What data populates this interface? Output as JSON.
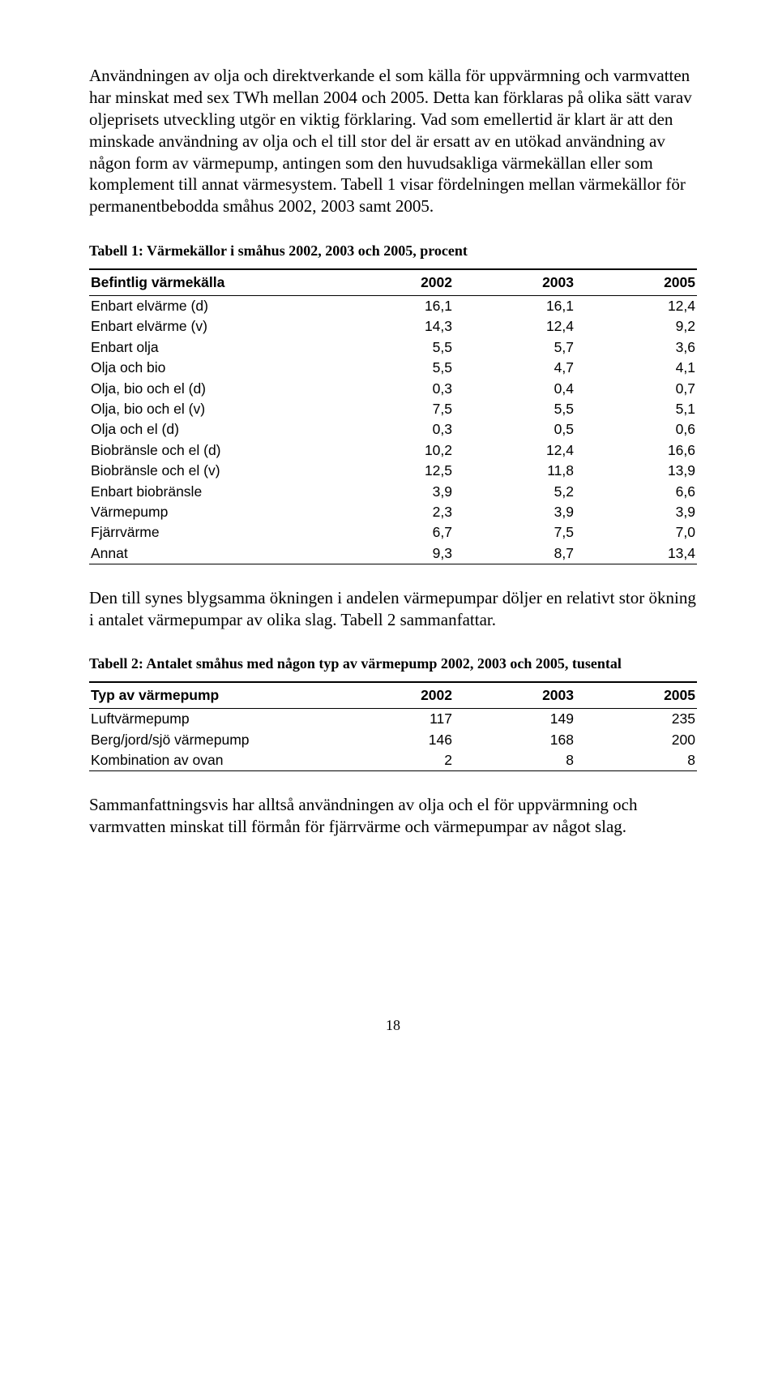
{
  "paragraphs": {
    "p1": "Användningen av olja och direktverkande el som källa för uppvärmning och varmvatten har minskat med sex TWh mellan 2004 och 2005. Detta kan förklaras på olika sätt varav oljeprisets utveckling utgör en viktig förklaring. Vad som emellertid är klart är att den minskade användning av olja och el till stor del är ersatt av en utökad användning av någon form av värmepump, antingen som den huvudsakliga värmekällan eller som komplement till annat värmesystem. Tabell 1 visar fördelningen mellan värmekällor för permanentbebodda småhus 2002, 2003 samt 2005.",
    "p2": "Den till synes blygsamma ökningen i andelen värmepumpar döljer en relativt stor ökning i antalet värmepumpar av olika slag. Tabell 2 sammanfattar.",
    "p3": "Sammanfattningsvis har alltså användningen av olja och el för uppvärmning och varmvatten minskat till förmån för fjärrvärme och värmepumpar av något slag."
  },
  "table1": {
    "title": "Tabell 1: Värmekällor i småhus 2002, 2003 och 2005, procent",
    "columns": [
      "Befintlig värmekälla",
      "2002",
      "2003",
      "2005"
    ],
    "rows": [
      [
        "Enbart elvärme (d)",
        "16,1",
        "16,1",
        "12,4"
      ],
      [
        "Enbart elvärme (v)",
        "14,3",
        "12,4",
        "9,2"
      ],
      [
        "Enbart olja",
        "5,5",
        "5,7",
        "3,6"
      ],
      [
        "Olja och bio",
        "5,5",
        "4,7",
        "4,1"
      ],
      [
        "Olja, bio och el (d)",
        "0,3",
        "0,4",
        "0,7"
      ],
      [
        "Olja, bio och el (v)",
        "7,5",
        "5,5",
        "5,1"
      ],
      [
        "Olja och el (d)",
        "0,3",
        "0,5",
        "0,6"
      ],
      [
        "Biobränsle och el (d)",
        "10,2",
        "12,4",
        "16,6"
      ],
      [
        "Biobränsle och el (v)",
        "12,5",
        "11,8",
        "13,9"
      ],
      [
        "Enbart biobränsle",
        "3,9",
        "5,2",
        "6,6"
      ],
      [
        "Värmepump",
        "2,3",
        "3,9",
        "3,9"
      ],
      [
        "Fjärrvärme",
        "6,7",
        "7,5",
        "7,0"
      ],
      [
        "Annat",
        "9,3",
        "8,7",
        "13,4"
      ]
    ]
  },
  "table2": {
    "title": "Tabell 2: Antalet småhus med någon typ av värmepump 2002, 2003 och 2005, tusental",
    "columns": [
      "Typ av värmepump",
      "2002",
      "2003",
      "2005"
    ],
    "rows": [
      [
        "Luftvärmepump",
        "117",
        "149",
        "235"
      ],
      [
        "Berg/jord/sjö värmepump",
        "146",
        "168",
        "200"
      ],
      [
        "Kombination av ovan",
        "2",
        "8",
        "8"
      ]
    ]
  },
  "pageNumber": "18"
}
